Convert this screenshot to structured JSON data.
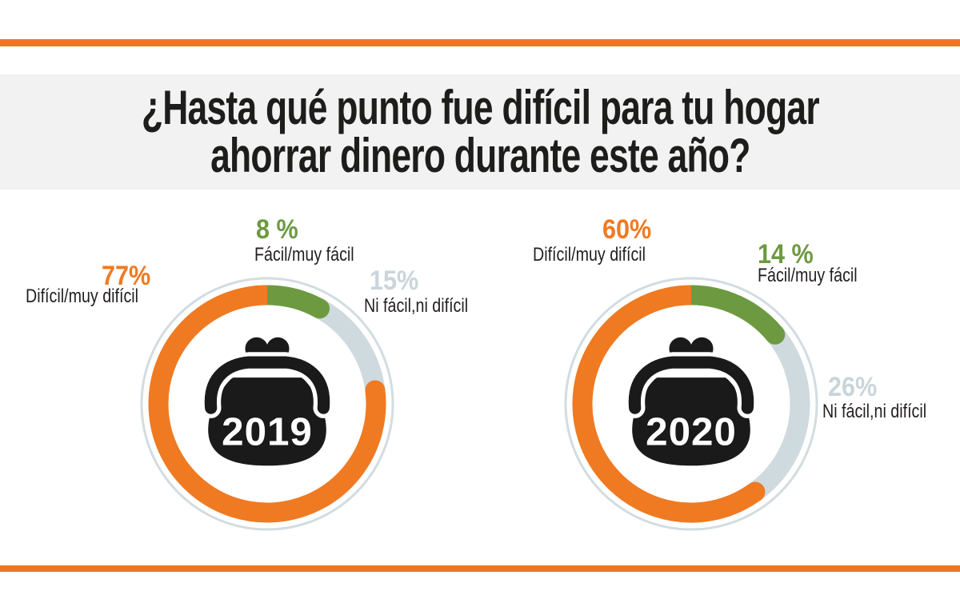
{
  "title": {
    "line1": "¿Hasta qué punto fue difícil para tu hogar",
    "line2": "ahorrar dinero durante este año?"
  },
  "theme": {
    "accent_orange": "#EE7623",
    "segment_orange": "#EF7A22",
    "segment_green": "#6D9A41",
    "segment_gray": "#CFDADF",
    "ring_outline_gray": "#D2DCE1",
    "title_band_bg": "#F2F2F3",
    "text_black": "#231F20",
    "purse_black": "#1A1A1A",
    "year_text_white": "#FFFFFF"
  },
  "chart_data": [
    {
      "type": "pie",
      "subtype": "donut-ring",
      "center_label": "2019",
      "center_icon": "coin-purse",
      "start_angle_deg": 0,
      "direction": "clockwise",
      "segments": [
        {
          "label": "Fácil/muy fácil",
          "value": 8,
          "pct_label": "8 %",
          "color": "#6D9A41"
        },
        {
          "label": "Ni fácil,ni difícil",
          "value": 15,
          "pct_label": "15%",
          "color": "#CFDADF"
        },
        {
          "label": "Difícil/muy difícil",
          "value": 77,
          "pct_label": "77%",
          "color": "#EF7A22"
        }
      ]
    },
    {
      "type": "pie",
      "subtype": "donut-ring",
      "center_label": "2020",
      "center_icon": "coin-purse",
      "start_angle_deg": 0,
      "direction": "clockwise",
      "segments": [
        {
          "label": "Fácil/muy fácil",
          "value": 14,
          "pct_label": "14 %",
          "color": "#6D9A41"
        },
        {
          "label": "Ni fácil,ni difícil",
          "value": 26,
          "pct_label": "26%",
          "color": "#CFDADF"
        },
        {
          "label": "Difícil/muy difícil",
          "value": 60,
          "pct_label": "60%",
          "color": "#EF7A22"
        }
      ]
    }
  ]
}
